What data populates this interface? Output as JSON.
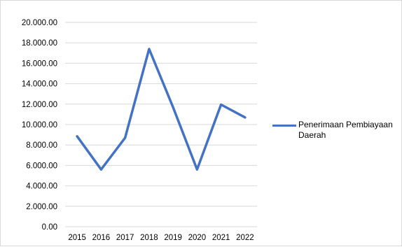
{
  "chart_data": {
    "type": "line",
    "x": [
      "2015",
      "2016",
      "2017",
      "2018",
      "2019",
      "2020",
      "2021",
      "2022"
    ],
    "series": [
      {
        "name": "Penerimaan Pembiayaan Daerah",
        "values": [
          8850,
          5600,
          8700,
          17400,
          11700,
          5600,
          11950,
          10700
        ],
        "color": "#4472c4"
      }
    ],
    "y_ticks": [
      "0.00",
      "2.000.00",
      "4.000.00",
      "6.000.00",
      "8.000.00",
      "10.000.00",
      "12.000.00",
      "14.000.00",
      "16.000.00",
      "18.000.00",
      "20.000.00"
    ],
    "ylim": [
      0,
      20000
    ],
    "grid": true,
    "legend_position": "right",
    "title": "",
    "xlabel": "",
    "ylabel": ""
  }
}
